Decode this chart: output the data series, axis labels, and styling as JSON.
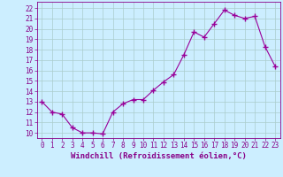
{
  "x": [
    0,
    1,
    2,
    3,
    4,
    5,
    6,
    7,
    8,
    9,
    10,
    11,
    12,
    13,
    14,
    15,
    16,
    17,
    18,
    19,
    20,
    21,
    22,
    23
  ],
  "y": [
    13.0,
    12.0,
    11.8,
    10.5,
    10.0,
    10.0,
    9.9,
    12.0,
    12.8,
    13.2,
    13.2,
    14.1,
    14.9,
    15.6,
    17.5,
    19.7,
    19.2,
    20.5,
    21.8,
    21.3,
    21.0,
    21.2,
    18.3,
    16.4
  ],
  "line_color": "#990099",
  "marker": "+",
  "marker_size": 5,
  "marker_linewidth": 1.0,
  "bg_color": "#cceeff",
  "grid_color": "#aacccc",
  "xlabel": "Windchill (Refroidissement éolien,°C)",
  "ylabel": "",
  "ylim": [
    9.5,
    22.6
  ],
  "yticks": [
    10,
    11,
    12,
    13,
    14,
    15,
    16,
    17,
    18,
    19,
    20,
    21,
    22
  ],
  "xlim": [
    -0.5,
    23.5
  ],
  "xticks": [
    0,
    1,
    2,
    3,
    4,
    5,
    6,
    7,
    8,
    9,
    10,
    11,
    12,
    13,
    14,
    15,
    16,
    17,
    18,
    19,
    20,
    21,
    22,
    23
  ],
  "tick_color": "#880088",
  "axis_color": "#880088",
  "xlabel_fontsize": 6.5,
  "tick_fontsize": 5.5
}
